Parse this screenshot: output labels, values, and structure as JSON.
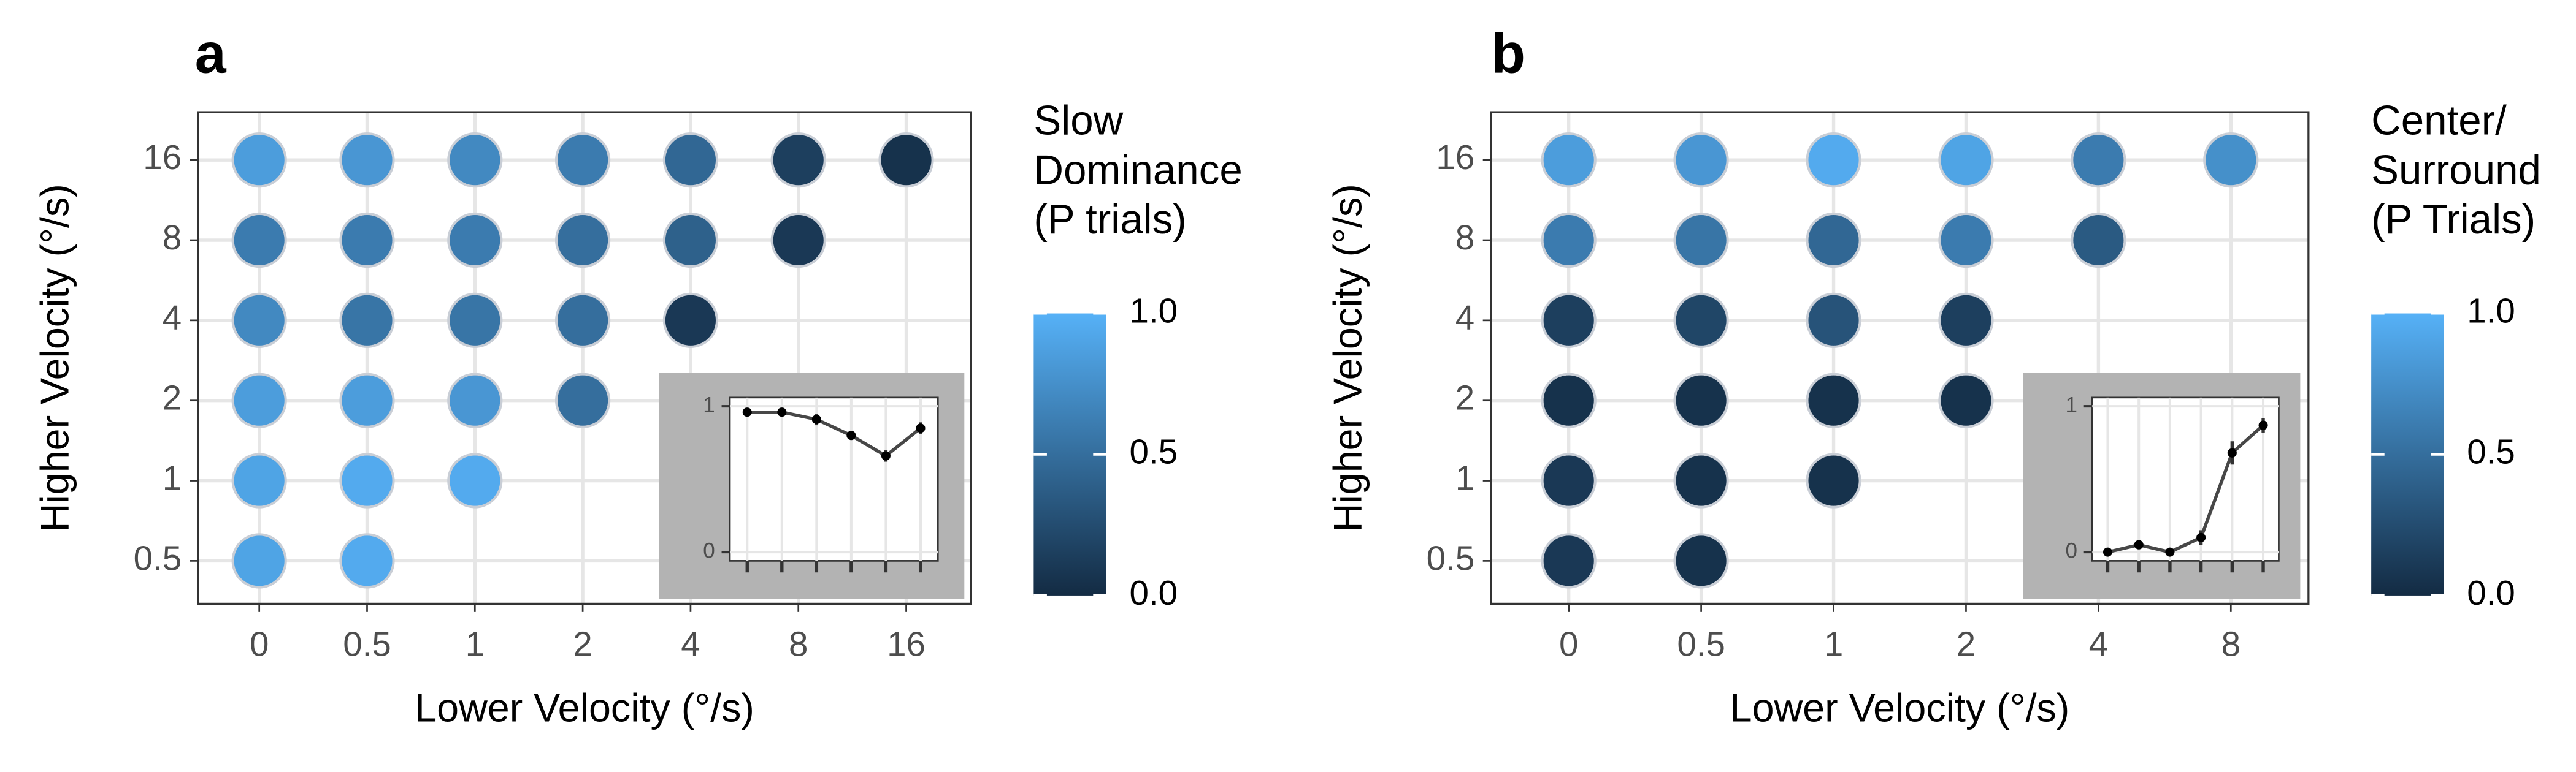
{
  "chart_data": [
    {
      "type": "dotgrid",
      "panel_label": "a",
      "x_label": "Lower Velocity (°/s)",
      "y_label": "Higher Velocity (°/s)",
      "x_categories": [
        "0",
        "0.5",
        "1",
        "2",
        "4",
        "8",
        "16"
      ],
      "y_categories": [
        "0.5",
        "1",
        "2",
        "4",
        "8",
        "16"
      ],
      "values": [
        [
          0.9,
          0.95,
          null,
          null,
          null,
          null,
          null
        ],
        [
          0.9,
          0.95,
          0.95,
          null,
          null,
          null,
          null
        ],
        [
          0.85,
          0.85,
          0.8,
          0.5,
          null,
          null,
          null
        ],
        [
          0.7,
          0.55,
          0.55,
          0.5,
          0.1,
          null,
          null
        ],
        [
          0.6,
          0.6,
          0.6,
          0.5,
          0.4,
          0.1,
          null
        ],
        [
          0.85,
          0.8,
          0.7,
          0.6,
          0.45,
          0.15,
          0.05
        ]
      ],
      "grid": true,
      "colorbar": {
        "title": [
          "Slow",
          "Dominance",
          "(P trials)"
        ],
        "colors": [
          "#132B43",
          "#56B1F7"
        ],
        "lim": [
          0,
          1
        ],
        "ticks": [
          {
            "value": 0,
            "label": "0.0"
          },
          {
            "value": 0.5,
            "label": "0.5"
          },
          {
            "value": 1,
            "label": "1.0"
          }
        ]
      }
    },
    {
      "type": "line",
      "categories": [
        null,
        null,
        null,
        null,
        null,
        null
      ],
      "values": [
        0.96,
        0.96,
        0.91,
        0.8,
        0.66,
        0.85
      ],
      "error": [
        0.02,
        0.02,
        0.04,
        0.02,
        0.04,
        0.04
      ],
      "color": "#333333",
      "ylim": [
        -0.06,
        1.06
      ],
      "yticks": [
        0,
        1
      ],
      "grid": true
    },
    {
      "type": "dotgrid",
      "panel_label": "b",
      "x_label": "Lower Velocity (°/s)",
      "y_label": "Higher Velocity (°/s)",
      "x_categories": [
        "0",
        "0.5",
        "1",
        "2",
        "4",
        "8"
      ],
      "y_categories": [
        "0.5",
        "1",
        "2",
        "4",
        "8",
        "16"
      ],
      "values": [
        [
          0.1,
          0.05,
          null,
          null,
          null,
          null
        ],
        [
          0.1,
          0.05,
          0.05,
          null,
          null,
          null
        ],
        [
          0.05,
          0.05,
          0.05,
          0.05,
          null,
          null
        ],
        [
          0.15,
          0.2,
          0.3,
          0.15,
          null,
          null
        ],
        [
          0.6,
          0.55,
          0.45,
          0.6,
          0.35,
          null
        ],
        [
          0.85,
          0.8,
          0.95,
          0.9,
          0.6,
          0.75
        ]
      ],
      "grid": true,
      "colorbar": {
        "title": [
          "Center/",
          "Surround",
          "(P Trials)"
        ],
        "colors": [
          "#132B43",
          "#56B1F7"
        ],
        "lim": [
          0,
          1
        ],
        "ticks": [
          {
            "value": 0,
            "label": "0.0"
          },
          {
            "value": 0.5,
            "label": "0.5"
          },
          {
            "value": 1,
            "label": "1.0"
          }
        ]
      }
    },
    {
      "type": "line",
      "categories": [
        null,
        null,
        null,
        null,
        null,
        null
      ],
      "values": [
        0.0,
        0.05,
        0.0,
        0.1,
        0.68,
        0.87
      ],
      "error": [
        0.02,
        0.02,
        0.01,
        0.05,
        0.08,
        0.05
      ],
      "color": "#333333",
      "ylim": [
        -0.06,
        1.06
      ],
      "yticks": [
        0,
        1
      ],
      "grid": true
    }
  ]
}
